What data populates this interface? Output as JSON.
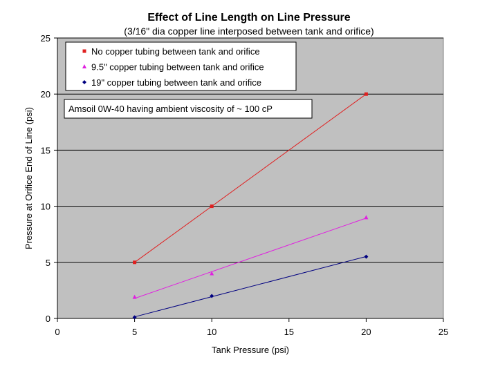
{
  "chart_data": {
    "type": "line",
    "title": "Effect of Line Length on Line Pressure",
    "subtitle": "(3/16\" dia copper line interposed between tank and orifice)",
    "xlabel": "Tank Pressure (psi)",
    "ylabel": "Pressure at Orifice End of Line (psi)",
    "xlim": [
      0,
      25
    ],
    "ylim": [
      0,
      25
    ],
    "xticks": [
      "0",
      "5",
      "10",
      "15",
      "20",
      "25"
    ],
    "yticks": [
      "0",
      "5",
      "10",
      "15",
      "20",
      "25"
    ],
    "grid": "horizontal major gridlines",
    "plot_background": "#c0c0c0",
    "legend_position": "top-left",
    "annotation": "Amsoil 0W-40 having ambient viscosity of ~ 100 cP",
    "line_style": "linear trendline",
    "series": [
      {
        "name": "No copper tubing between tank and orifice",
        "color": "#e02020",
        "marker": "square",
        "x": [
          5,
          10,
          20
        ],
        "y": [
          5,
          10,
          20
        ]
      },
      {
        "name": "9.5\" copper tubing between tank and orifice",
        "color": "#e020e0",
        "marker": "triangle",
        "x": [
          5,
          10,
          20
        ],
        "y": [
          1.9,
          4.0,
          9.0
        ]
      },
      {
        "name": "19\" copper tubing between tank and orifice",
        "color": "#000080",
        "marker": "diamond",
        "x": [
          5,
          10,
          20
        ],
        "y": [
          0.1,
          2.0,
          5.5
        ]
      }
    ]
  }
}
